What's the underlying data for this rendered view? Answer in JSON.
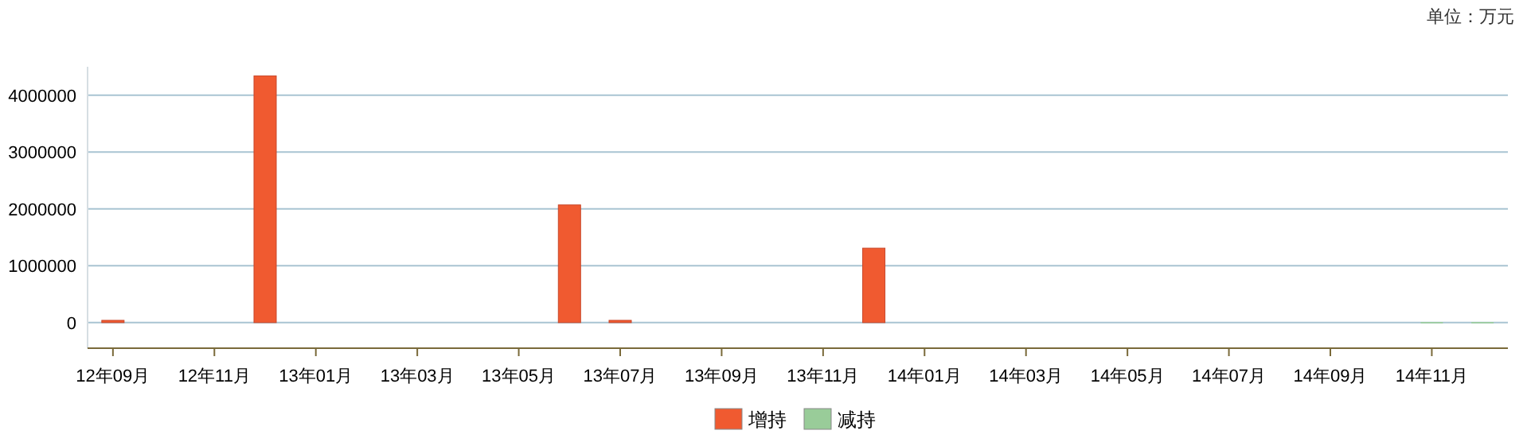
{
  "chart_data": {
    "type": "bar",
    "annotations": [
      "单位：万元"
    ],
    "categories": [
      "12年09月",
      null,
      "12年11月",
      null,
      "13年01月",
      null,
      "13年03月",
      null,
      "13年05月",
      null,
      "13年07月",
      null,
      "13年09月",
      null,
      "13年11月",
      null,
      "14年01月",
      null,
      "14年03月",
      null,
      "14年05月",
      null,
      "14年07月",
      null,
      "14年09月",
      null,
      "14年11月",
      null
    ],
    "series": [
      {
        "name": "增持",
        "color": "#f05a30",
        "values": [
          40000,
          null,
          null,
          4340000,
          null,
          null,
          null,
          null,
          null,
          2070000,
          40000,
          null,
          null,
          null,
          null,
          1310000,
          null,
          null,
          null,
          null,
          null,
          null,
          null,
          null,
          null,
          null,
          null,
          null
        ]
      },
      {
        "name": "减持",
        "color": "#99cc99",
        "values": [
          null,
          null,
          null,
          null,
          null,
          null,
          null,
          null,
          null,
          null,
          null,
          null,
          null,
          null,
          null,
          null,
          null,
          null,
          null,
          null,
          null,
          null,
          null,
          null,
          null,
          null,
          10000,
          10000
        ]
      }
    ],
    "ylim": [
      -450000,
      4500000
    ],
    "yticks": [
      0,
      1000000,
      2000000,
      3000000,
      4000000
    ],
    "grid": "y",
    "legend": "bottom"
  }
}
